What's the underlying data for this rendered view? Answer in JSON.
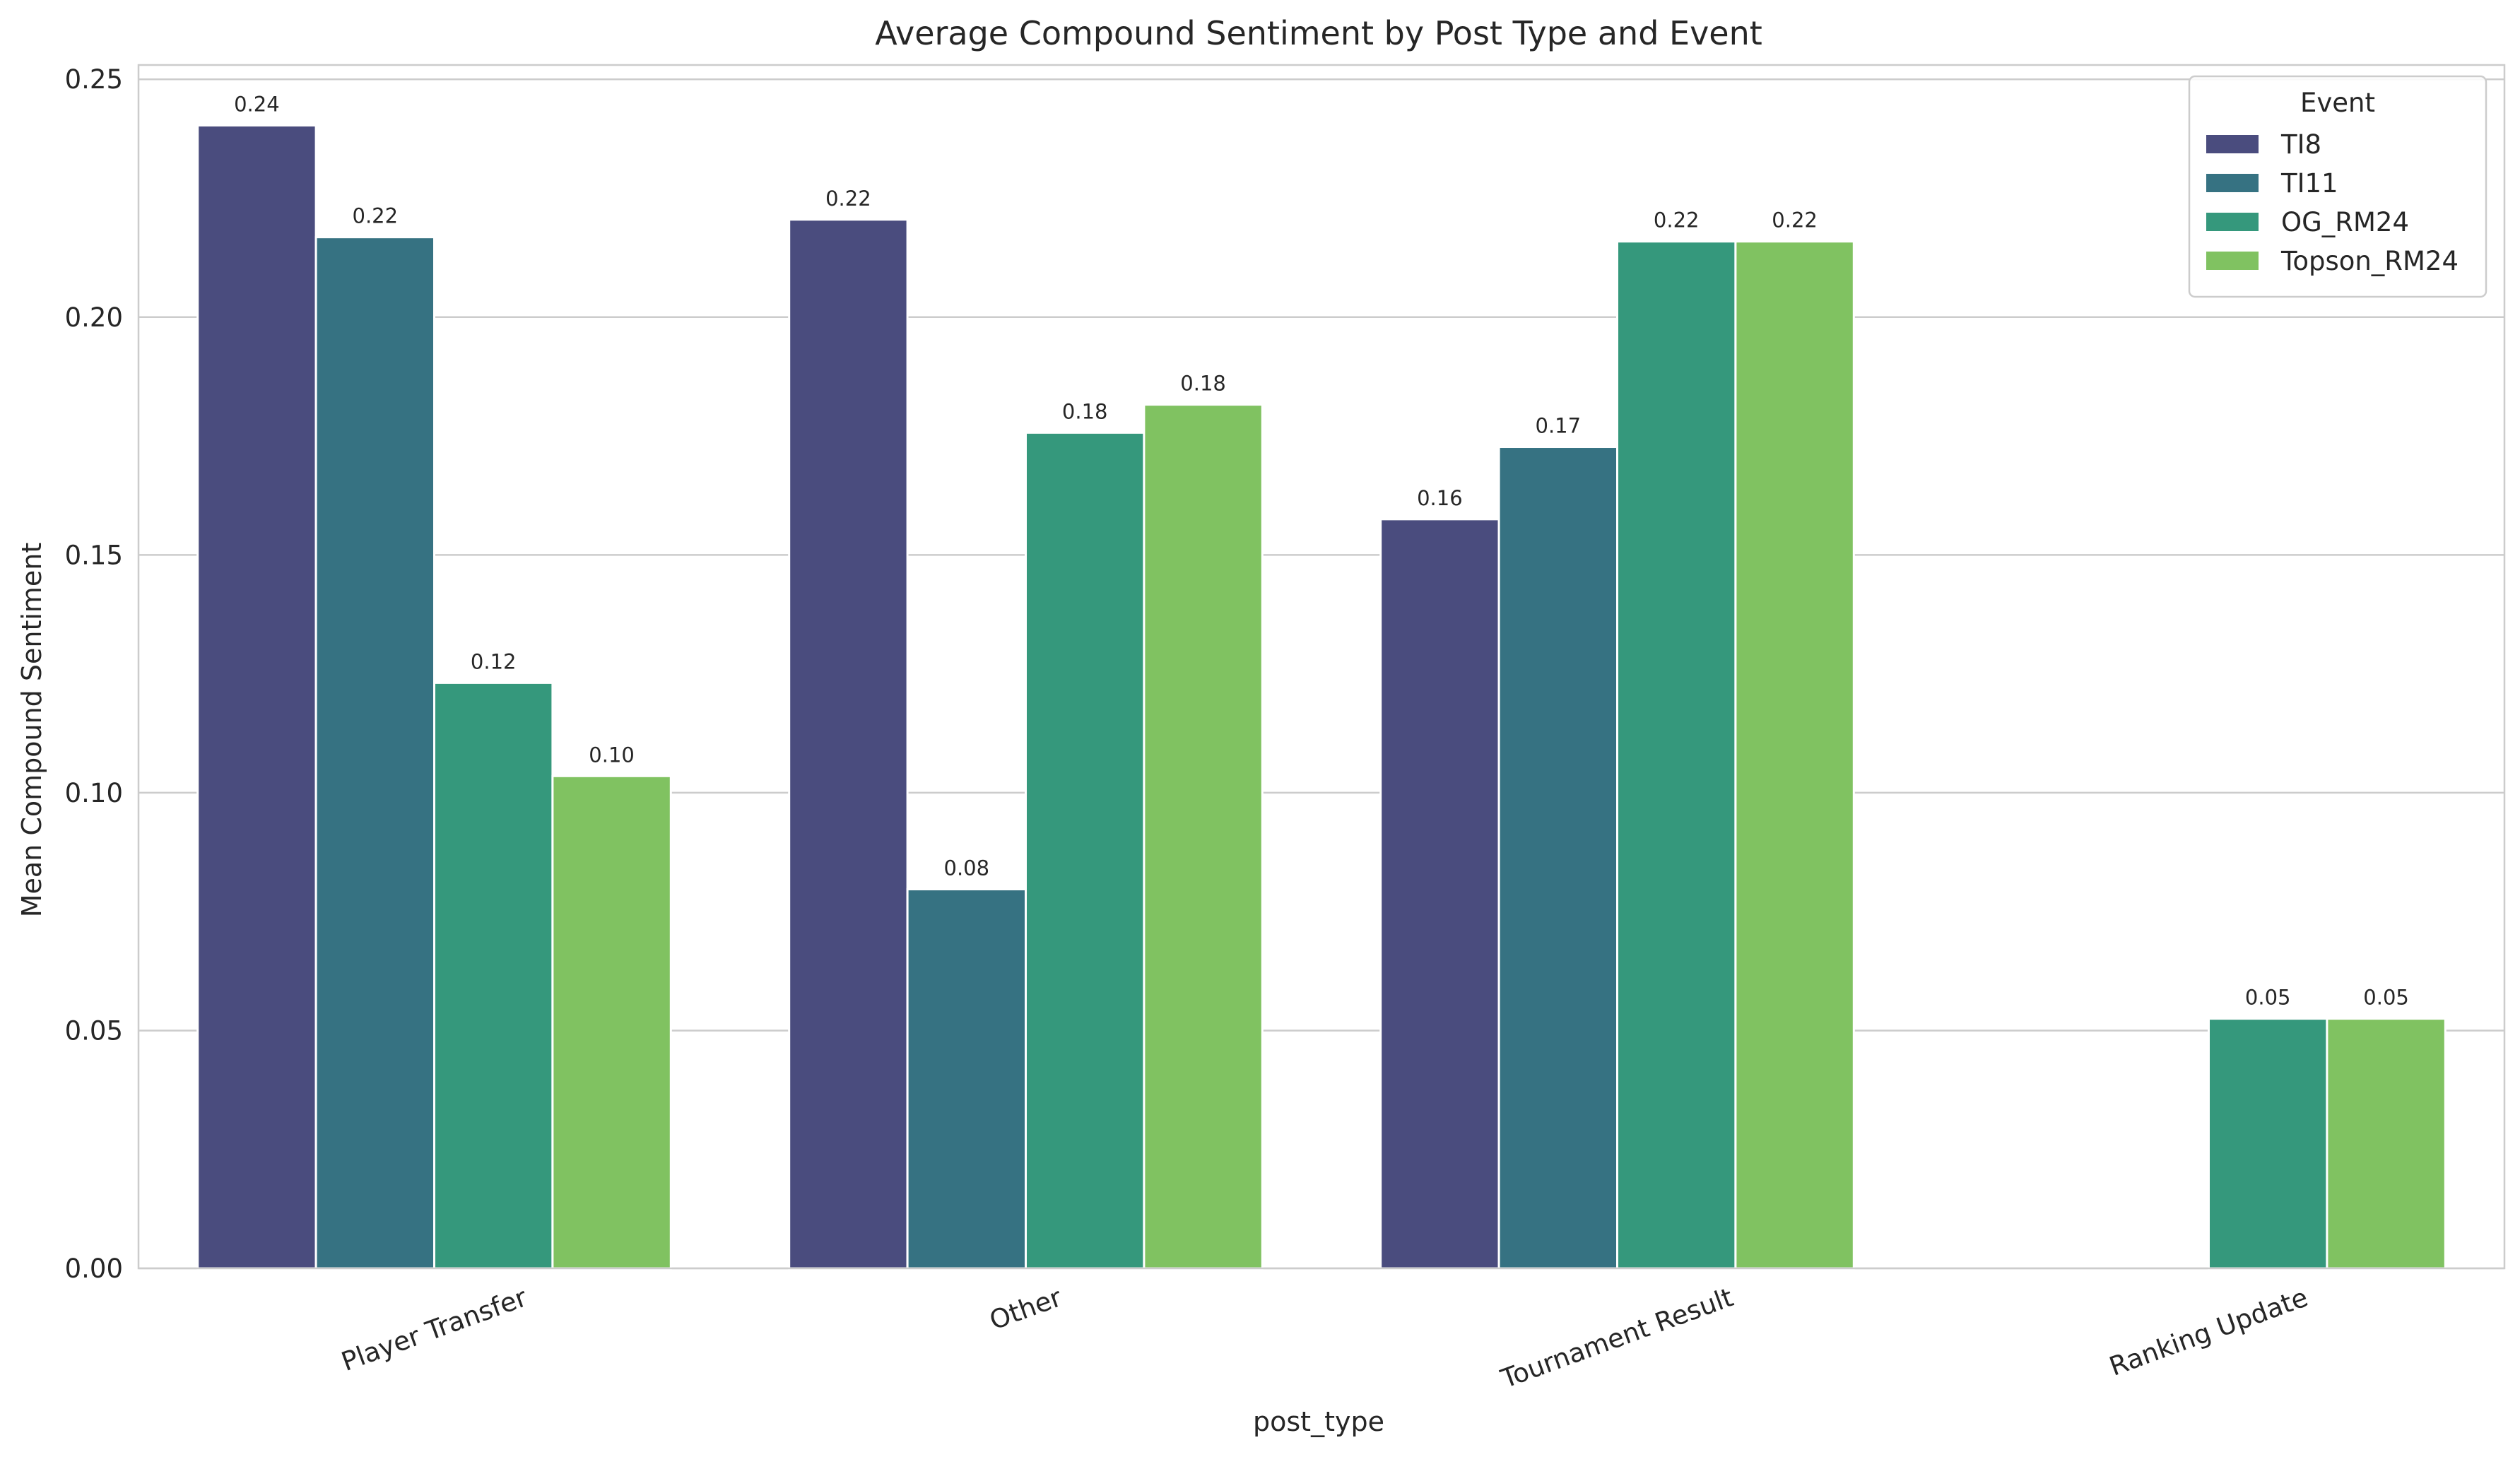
{
  "chart_data": {
    "type": "bar",
    "title": "Average Compound Sentiment by Post Type and Event",
    "xlabel": "post_type",
    "ylabel": "Mean Compound Sentiment",
    "categories": [
      "Player Transfer",
      "Other",
      "Tournament Result",
      "Ranking Update"
    ],
    "ylim": [
      0,
      0.253
    ],
    "yticks": [
      0.0,
      0.05,
      0.1,
      0.15,
      0.2,
      0.25
    ],
    "ytick_labels": [
      "0.00",
      "0.05",
      "0.10",
      "0.15",
      "0.20",
      "0.25"
    ],
    "grid": "y",
    "legend": {
      "title": "Event",
      "placement": "top-right"
    },
    "series": [
      {
        "name": "TI8",
        "color": "#4a4c7e",
        "values": [
          0.2403,
          0.2205,
          0.1575,
          null
        ],
        "labels": [
          "0.24",
          "0.22",
          "0.16",
          ""
        ]
      },
      {
        "name": "TI11",
        "color": "#367282",
        "values": [
          0.2168,
          0.0797,
          0.1727,
          null
        ],
        "labels": [
          "0.22",
          "0.08",
          "0.17",
          ""
        ]
      },
      {
        "name": "OG_RM24",
        "color": "#35987c",
        "values": [
          0.1231,
          0.1757,
          0.2159,
          0.0525
        ],
        "labels": [
          "0.12",
          "0.18",
          "0.22",
          "0.05"
        ]
      },
      {
        "name": "Topson_RM24",
        "color": "#80c261",
        "values": [
          0.1035,
          0.1816,
          0.2159,
          0.0525
        ],
        "labels": [
          "0.10",
          "0.18",
          "0.22",
          "0.05"
        ]
      }
    ]
  }
}
